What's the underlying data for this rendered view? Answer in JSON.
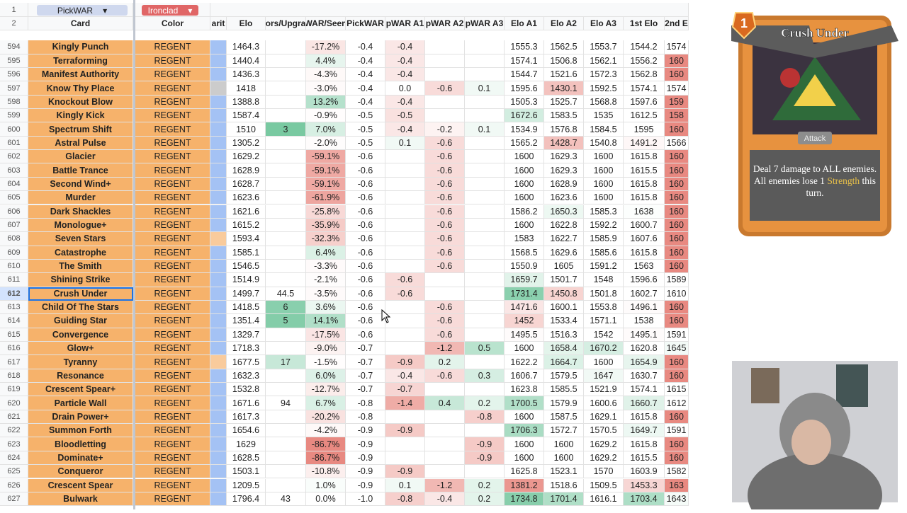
{
  "header": {
    "filters": [
      "PickWAR",
      "Ironclad"
    ],
    "row_labels": [
      "1",
      "2"
    ],
    "columns": [
      "Card",
      "Color",
      "arit",
      "ors/Upgra",
      "WAR/Seen",
      "Elo",
      "PickWAR",
      "pWAR A1",
      "pWAR A2",
      "pWAR A3",
      "Elo A1",
      "Elo A2",
      "Elo A3",
      "1st Elo",
      "2nd E"
    ]
  },
  "table": {
    "rows": [
      {
        "n": "594",
        "card": "Kingly Punch",
        "color": "REGENT",
        "rarity": "#a4c2f4",
        "cells": [
          "1464.3",
          null,
          "-17.2%",
          "-0.4",
          "-0.4",
          null,
          null,
          "1555.3",
          "1562.5",
          "1553.7",
          "1544.2",
          "1574"
        ]
      },
      {
        "n": "595",
        "card": "Terraforming",
        "color": "REGENT",
        "rarity": "#a4c2f4",
        "cells": [
          "1440.4",
          null,
          "4.4%",
          "-0.4",
          "-0.4",
          null,
          null,
          "1574.1",
          "1506.8",
          "1562.1",
          "1556.2",
          "160"
        ]
      },
      {
        "n": "596",
        "card": "Manifest Authority",
        "color": "REGENT",
        "rarity": "#a4c2f4",
        "cells": [
          "1436.3",
          null,
          "-4.3%",
          "-0.4",
          "-0.4",
          null,
          null,
          "1544.7",
          "1521.6",
          "1572.3",
          "1562.8",
          "160"
        ]
      },
      {
        "n": "597",
        "card": "Know Thy Place",
        "color": "REGENT",
        "rarity": "#cccccc",
        "cells": [
          "1418",
          null,
          "-3.0%",
          "-0.4",
          "0.0",
          "-0.6",
          "0.1",
          "1595.6",
          "1430.1",
          "1592.5",
          "1574.1",
          "1574"
        ]
      },
      {
        "n": "598",
        "card": "Knockout Blow",
        "color": "REGENT",
        "rarity": "#a4c2f4",
        "cells": [
          "1388.8",
          null,
          "13.2%",
          "-0.4",
          "-0.4",
          null,
          null,
          "1505.3",
          "1525.7",
          "1568.8",
          "1597.6",
          "159"
        ]
      },
      {
        "n": "599",
        "card": "Kingly Kick",
        "color": "REGENT",
        "rarity": "#a4c2f4",
        "cells": [
          "1587.4",
          null,
          "-0.9%",
          "-0.5",
          "-0.5",
          null,
          null,
          "1672.6",
          "1583.5",
          "1535",
          "1612.5",
          "158"
        ]
      },
      {
        "n": "600",
        "card": "Spectrum Shift",
        "color": "REGENT",
        "rarity": "#a4c2f4",
        "cells": [
          "1510",
          "3",
          "7.0%",
          "-0.5",
          "-0.4",
          "-0.2",
          "0.1",
          "1534.9",
          "1576.8",
          "1584.5",
          "1595",
          "160"
        ]
      },
      {
        "n": "601",
        "card": "Astral Pulse",
        "color": "REGENT",
        "rarity": "#a4c2f4",
        "cells": [
          "1305.2",
          null,
          "-2.0%",
          "-0.5",
          "0.1",
          "-0.6",
          null,
          "1565.2",
          "1428.7",
          "1540.8",
          "1491.2",
          "1566"
        ]
      },
      {
        "n": "602",
        "card": "Glacier",
        "color": "REGENT",
        "rarity": "#a4c2f4",
        "cells": [
          "1629.2",
          null,
          "-59.1%",
          "-0.6",
          null,
          "-0.6",
          null,
          "1600",
          "1629.3",
          "1600",
          "1615.8",
          "160"
        ]
      },
      {
        "n": "603",
        "card": "Battle Trance",
        "color": "REGENT",
        "rarity": "#a4c2f4",
        "cells": [
          "1628.9",
          null,
          "-59.1%",
          "-0.6",
          null,
          "-0.6",
          null,
          "1600",
          "1629.3",
          "1600",
          "1615.5",
          "160"
        ]
      },
      {
        "n": "604",
        "card": "Second Wind+",
        "color": "REGENT",
        "rarity": "#a4c2f4",
        "cells": [
          "1628.7",
          null,
          "-59.1%",
          "-0.6",
          null,
          "-0.6",
          null,
          "1600",
          "1628.9",
          "1600",
          "1615.8",
          "160"
        ]
      },
      {
        "n": "605",
        "card": "Murder",
        "color": "REGENT",
        "rarity": "#a4c2f4",
        "cells": [
          "1623.6",
          null,
          "-61.9%",
          "-0.6",
          null,
          "-0.6",
          null,
          "1600",
          "1623.6",
          "1600",
          "1615.8",
          "160"
        ]
      },
      {
        "n": "606",
        "card": "Dark Shackles",
        "color": "REGENT",
        "rarity": "#a4c2f4",
        "cells": [
          "1621.6",
          null,
          "-25.8%",
          "-0.6",
          null,
          "-0.6",
          null,
          "1586.2",
          "1650.3",
          "1585.3",
          "1638",
          "160"
        ]
      },
      {
        "n": "607",
        "card": "Monologue+",
        "color": "REGENT",
        "rarity": "#a4c2f4",
        "cells": [
          "1615.2",
          null,
          "-35.9%",
          "-0.6",
          null,
          "-0.6",
          null,
          "1600",
          "1622.8",
          "1592.2",
          "1600.7",
          "160"
        ]
      },
      {
        "n": "608",
        "card": "Seven Stars",
        "color": "REGENT",
        "rarity": "#f9cb9c",
        "cells": [
          "1593.4",
          null,
          "-32.3%",
          "-0.6",
          null,
          "-0.6",
          null,
          "1583",
          "1622.7",
          "1585.9",
          "1607.6",
          "160"
        ]
      },
      {
        "n": "609",
        "card": "Catastrophe",
        "color": "REGENT",
        "rarity": "#a4c2f4",
        "cells": [
          "1585.1",
          null,
          "6.4%",
          "-0.6",
          null,
          "-0.6",
          null,
          "1568.5",
          "1629.6",
          "1585.6",
          "1615.8",
          "160"
        ]
      },
      {
        "n": "610",
        "card": "The Smith",
        "color": "REGENT",
        "rarity": "#a4c2f4",
        "cells": [
          "1546.5",
          null,
          "-3.3%",
          "-0.6",
          null,
          "-0.6",
          null,
          "1550.9",
          "1605",
          "1591.2",
          "1563",
          "160"
        ]
      },
      {
        "n": "611",
        "card": "Shining Strike",
        "color": "REGENT",
        "rarity": "#a4c2f4",
        "cells": [
          "1514.9",
          null,
          "-2.1%",
          "-0.6",
          "-0.6",
          null,
          null,
          "1659.7",
          "1501.7",
          "1548",
          "1596.6",
          "1589"
        ]
      },
      {
        "n": "612",
        "card": "Crush Under",
        "color": "REGENT",
        "rarity": "#a4c2f4",
        "cells": [
          "1499.7",
          "44.5",
          "-3.5%",
          "-0.6",
          "-0.6",
          null,
          null,
          "1731.4",
          "1450.8",
          "1501.8",
          "1602.7",
          "1610"
        ]
      },
      {
        "n": "613",
        "card": "Child Of The Stars",
        "color": "REGENT",
        "rarity": "#a4c2f4",
        "cells": [
          "1418.5",
          "6",
          "3.6%",
          "-0.6",
          null,
          "-0.6",
          null,
          "1471.6",
          "1600.1",
          "1553.8",
          "1496.1",
          "160"
        ]
      },
      {
        "n": "614",
        "card": "Guiding Star",
        "color": "REGENT",
        "rarity": "#a4c2f4",
        "cells": [
          "1351.4",
          "5",
          "14.1%",
          "-0.6",
          null,
          "-0.6",
          null,
          "1452",
          "1533.4",
          "1571.1",
          "1538",
          "160"
        ]
      },
      {
        "n": "615",
        "card": "Convergence",
        "color": "REGENT",
        "rarity": "#a4c2f4",
        "cells": [
          "1329.7",
          null,
          "-17.5%",
          "-0.6",
          null,
          "-0.6",
          null,
          "1495.5",
          "1516.3",
          "1542",
          "1495.1",
          "1591"
        ]
      },
      {
        "n": "616",
        "card": "Glow+",
        "color": "REGENT",
        "rarity": "#a4c2f4",
        "cells": [
          "1718.3",
          null,
          "-9.0%",
          "-0.7",
          null,
          "-1.2",
          "0.5",
          "1600",
          "1658.4",
          "1670.2",
          "1620.8",
          "1645"
        ]
      },
      {
        "n": "617",
        "card": "Tyranny",
        "color": "REGENT",
        "rarity": "#f9cb9c",
        "cells": [
          "1677.5",
          "17",
          "-1.5%",
          "-0.7",
          "-0.9",
          "0.2",
          null,
          "1622.2",
          "1664.7",
          "1600",
          "1654.9",
          "160"
        ]
      },
      {
        "n": "618",
        "card": "Resonance",
        "color": "REGENT",
        "rarity": "#a4c2f4",
        "cells": [
          "1632.3",
          null,
          "6.0%",
          "-0.7",
          "-0.4",
          "-0.6",
          "0.3",
          "1606.7",
          "1579.5",
          "1647",
          "1630.7",
          "160"
        ]
      },
      {
        "n": "619",
        "card": "Crescent Spear+",
        "color": "REGENT",
        "rarity": "#a4c2f4",
        "cells": [
          "1532.8",
          null,
          "-12.7%",
          "-0.7",
          "-0.7",
          null,
          null,
          "1623.8",
          "1585.5",
          "1521.9",
          "1574.1",
          "1615"
        ]
      },
      {
        "n": "620",
        "card": "Particle Wall",
        "color": "REGENT",
        "rarity": "#a4c2f4",
        "cells": [
          "1671.6",
          "94",
          "6.7%",
          "-0.8",
          "-1.4",
          "0.4",
          "0.2",
          "1700.5",
          "1579.9",
          "1600.6",
          "1660.7",
          "1612"
        ]
      },
      {
        "n": "621",
        "card": "Drain Power+",
        "color": "REGENT",
        "rarity": "#a4c2f4",
        "cells": [
          "1617.3",
          null,
          "-20.2%",
          "-0.8",
          null,
          null,
          "-0.8",
          "1600",
          "1587.5",
          "1629.1",
          "1615.8",
          "160"
        ]
      },
      {
        "n": "622",
        "card": "Summon Forth",
        "color": "REGENT",
        "rarity": "#a4c2f4",
        "cells": [
          "1654.6",
          null,
          "-4.2%",
          "-0.9",
          "-0.9",
          null,
          null,
          "1706.3",
          "1572.7",
          "1570.5",
          "1649.7",
          "1591"
        ]
      },
      {
        "n": "623",
        "card": "Bloodletting",
        "color": "REGENT",
        "rarity": "#a4c2f4",
        "cells": [
          "1629",
          null,
          "-86.7%",
          "-0.9",
          null,
          null,
          "-0.9",
          "1600",
          "1600",
          "1629.2",
          "1615.8",
          "160"
        ]
      },
      {
        "n": "624",
        "card": "Dominate+",
        "color": "REGENT",
        "rarity": "#a4c2f4",
        "cells": [
          "1628.5",
          null,
          "-86.7%",
          "-0.9",
          null,
          null,
          "-0.9",
          "1600",
          "1600",
          "1629.2",
          "1615.5",
          "160"
        ]
      },
      {
        "n": "625",
        "card": "Conqueror",
        "color": "REGENT",
        "rarity": "#a4c2f4",
        "cells": [
          "1503.1",
          null,
          "-10.8%",
          "-0.9",
          "-0.9",
          null,
          null,
          "1625.8",
          "1523.1",
          "1570",
          "1603.9",
          "1582"
        ]
      },
      {
        "n": "626",
        "card": "Crescent Spear",
        "color": "REGENT",
        "rarity": "#a4c2f4",
        "cells": [
          "1209.5",
          null,
          "1.0%",
          "-0.9",
          "0.1",
          "-1.2",
          "0.2",
          "1381.2",
          "1518.6",
          "1509.5",
          "1453.3",
          "163"
        ]
      },
      {
        "n": "627",
        "card": "Bulwark",
        "color": "REGENT",
        "rarity": "#a4c2f4",
        "cells": [
          "1796.4",
          "43",
          "0.0%",
          "-1.0",
          "-0.8",
          "-0.4",
          "0.2",
          "1734.8",
          "1701.4",
          "1616.1",
          "1703.4",
          "1643"
        ]
      }
    ],
    "selected_row": 18
  },
  "card_preview": {
    "cost": "1",
    "title": "Crush Under",
    "type": "Attack",
    "description_before": "Deal 7 damage to ALL enemies. All enemies lose 1",
    "keyword": "Strength",
    "description_after": "this turn."
  }
}
